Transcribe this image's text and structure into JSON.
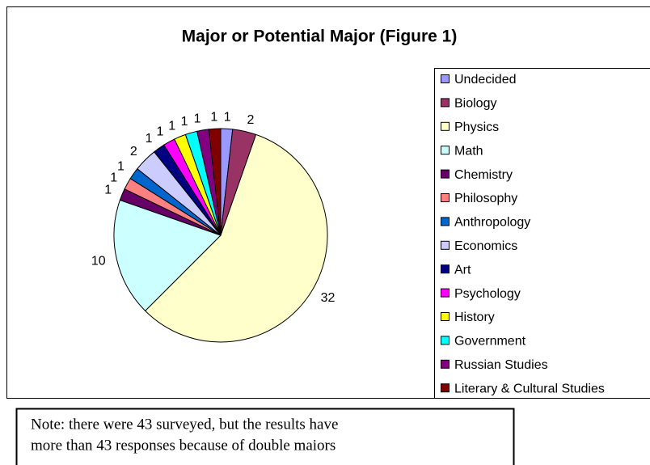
{
  "chart_data": {
    "type": "pie",
    "title": "Major or Potential Major (Figure 1)",
    "categories": [
      "Undecided",
      "Biology",
      "Physics",
      "Math",
      "Chemistry",
      "Philosophy",
      "Anthropology",
      "Economics",
      "Art",
      "Psychology",
      "History",
      "Government",
      "Russian Studies",
      "Literary & Cultural Studies"
    ],
    "values": [
      1,
      2,
      32,
      10,
      1,
      1,
      1,
      2,
      1,
      1,
      1,
      1,
      1,
      1
    ],
    "colors": [
      "#9999FF",
      "#993366",
      "#FFFFCC",
      "#CCFFFF",
      "#660066",
      "#FF8080",
      "#0066CC",
      "#CCCCFF",
      "#000080",
      "#FF00FF",
      "#FFFF00",
      "#00FFFF",
      "#800080",
      "#800000"
    ],
    "legend": "right"
  },
  "note": {
    "lines": [
      "Note: there were 43 surveyed, but the results have",
      "more than 43 responses because of double maiors"
    ]
  }
}
